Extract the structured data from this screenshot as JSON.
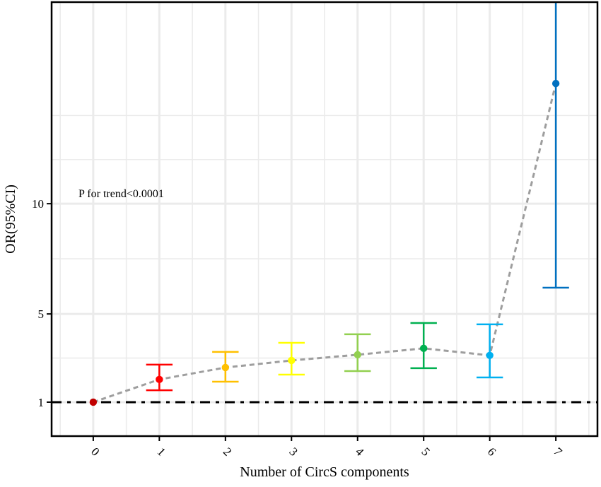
{
  "chart_data": {
    "type": "scatter",
    "subtype": "point-with-error-bars",
    "title": "",
    "xlabel": "Number of CircS components",
    "ylabel": "OR(95%CI)",
    "categories": [
      "0",
      "1",
      "2",
      "3",
      "4",
      "5",
      "6",
      "7"
    ],
    "x": [
      0,
      1,
      2,
      3,
      4,
      5,
      6,
      7
    ],
    "or": [
      1.0,
      2.03,
      2.57,
      2.89,
      3.15,
      3.44,
      3.12,
      15.45
    ],
    "ci_lower": [
      1.0,
      1.54,
      1.93,
      2.25,
      2.41,
      2.54,
      2.12,
      6.19
    ],
    "ci_upper": [
      1.0,
      2.7,
      3.28,
      3.69,
      4.08,
      4.59,
      4.53,
      20.0
    ],
    "colors": [
      "#C00000",
      "#FF0000",
      "#FFC000",
      "#FFFF00",
      "#92D050",
      "#00B050",
      "#00B0F0",
      "#0070C0"
    ],
    "trend_line": {
      "style": "dashed",
      "color": "#9E9E9E"
    },
    "reference_line": {
      "y": 1,
      "style": "dash-dot",
      "color": "#000000"
    },
    "yticks": [
      1,
      5,
      10
    ],
    "ytick_labels": [
      "1",
      "5",
      "10"
    ],
    "y_minor_gridlines": [
      3,
      7.5,
      12,
      14
    ],
    "xlim": [
      -0.63,
      7.63
    ],
    "ylim": [
      -0.54,
      19.14
    ],
    "xtick_rotation": 45,
    "grid": true,
    "legend": null,
    "annotations": [
      {
        "text": "P for trend<0.0001",
        "x": 0.58,
        "y": 10.5
      }
    ]
  },
  "labels": {
    "x_title": "Number of CircS components",
    "y_title": "OR(95%CI)",
    "annotation": "P for trend<0.0001"
  }
}
